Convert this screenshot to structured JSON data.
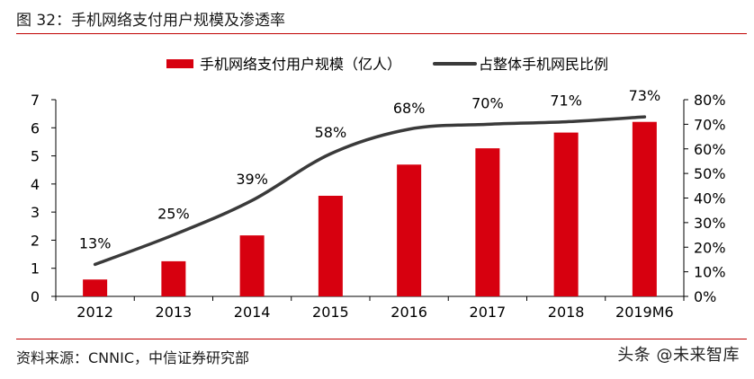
{
  "figure": {
    "title": "图 32：手机网络支付用户规模及渗透率",
    "source": "资料来源：CNNIC，中信证券研究部",
    "watermark": "头条 @未来智库"
  },
  "colors": {
    "bar": "#d7000f",
    "line": "#3a3a3a",
    "rule": "#c00000"
  },
  "chart_data": {
    "type": "bar",
    "title": "",
    "categories": [
      "2012",
      "2013",
      "2014",
      "2015",
      "2016",
      "2017",
      "2018",
      "2019M6"
    ],
    "series": [
      {
        "name": "手机网络支付用户规模（亿人）",
        "type": "bar",
        "axis": "left",
        "values": [
          0.6,
          1.25,
          2.17,
          3.58,
          4.69,
          5.27,
          5.83,
          6.21
        ]
      },
      {
        "name": "占整体手机网民比例",
        "type": "line",
        "axis": "right",
        "values": [
          13,
          25,
          39,
          58,
          68,
          70,
          71,
          73
        ],
        "labels": [
          "13%",
          "25%",
          "39%",
          "58%",
          "68%",
          "70%",
          "71%",
          "73%"
        ]
      }
    ],
    "y_left": {
      "min": 0,
      "max": 7,
      "ticks": [
        "0",
        "1",
        "2",
        "3",
        "4",
        "5",
        "6",
        "7"
      ]
    },
    "y_right": {
      "min": 0,
      "max": 80,
      "ticks": [
        "0%",
        "10%",
        "20%",
        "30%",
        "40%",
        "50%",
        "60%",
        "70%",
        "80%"
      ]
    },
    "grid": false,
    "legend_position": "top"
  }
}
